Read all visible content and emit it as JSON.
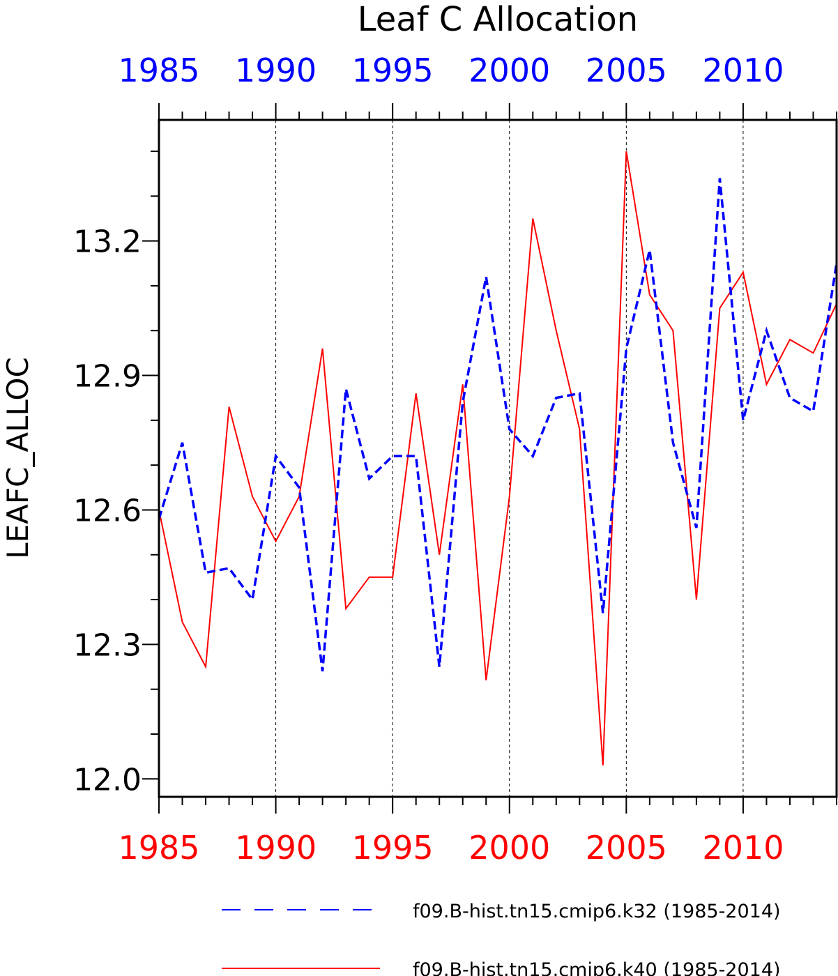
{
  "chart_data": {
    "type": "line",
    "title": "Leaf C Allocation",
    "ylabel": "LEAFC_ALLOC",
    "xlim": [
      1985,
      2014
    ],
    "ylim": [
      11.96,
      13.47
    ],
    "grid": "dashed vertical lines at each 5 years",
    "x_ticks": [
      "1985",
      "1990",
      "1995",
      "2000",
      "2005",
      "2010"
    ],
    "x_tick_values": [
      1985,
      1990,
      1995,
      2000,
      2005,
      2010
    ],
    "y_ticks": [
      "12.0",
      "12.3",
      "12.6",
      "12.9",
      "13.2"
    ],
    "y_tick_values": [
      12.0,
      12.3,
      12.6,
      12.9,
      13.2
    ],
    "top_axis_color": "#0000ff",
    "bottom_axis_color": "#ff0000",
    "legend_position": "bottom",
    "x": [
      1985,
      1986,
      1987,
      1988,
      1989,
      1990,
      1991,
      1992,
      1993,
      1994,
      1995,
      1996,
      1997,
      1998,
      1999,
      2000,
      2001,
      2002,
      2003,
      2004,
      2005,
      2006,
      2007,
      2008,
      2009,
      2010,
      2011,
      2012,
      2013,
      2014
    ],
    "series": [
      {
        "name": "f09.B-hist.tn15.cmip6.k32 (1985-2014)",
        "color": "#0000ff",
        "style": "dashed",
        "values": [
          12.58,
          12.75,
          12.46,
          12.47,
          12.4,
          12.72,
          12.65,
          12.24,
          12.87,
          12.67,
          12.72,
          12.72,
          12.25,
          12.84,
          13.12,
          12.78,
          12.72,
          12.85,
          12.86,
          12.37,
          12.96,
          13.18,
          12.75,
          12.56,
          13.34,
          12.8,
          13.0,
          12.85,
          12.82,
          13.15
        ]
      },
      {
        "name": "f09.B-hist.tn15.cmip6.k40 (1985-2014)",
        "color": "#ff0000",
        "style": "solid",
        "values": [
          12.6,
          12.35,
          12.25,
          12.83,
          12.63,
          12.53,
          12.63,
          12.96,
          12.38,
          12.45,
          12.45,
          12.86,
          12.5,
          12.88,
          12.22,
          12.63,
          13.25,
          13.0,
          12.78,
          12.03,
          13.4,
          13.08,
          13.0,
          12.4,
          13.05,
          13.13,
          12.88,
          12.98,
          12.95,
          13.06
        ]
      }
    ]
  }
}
